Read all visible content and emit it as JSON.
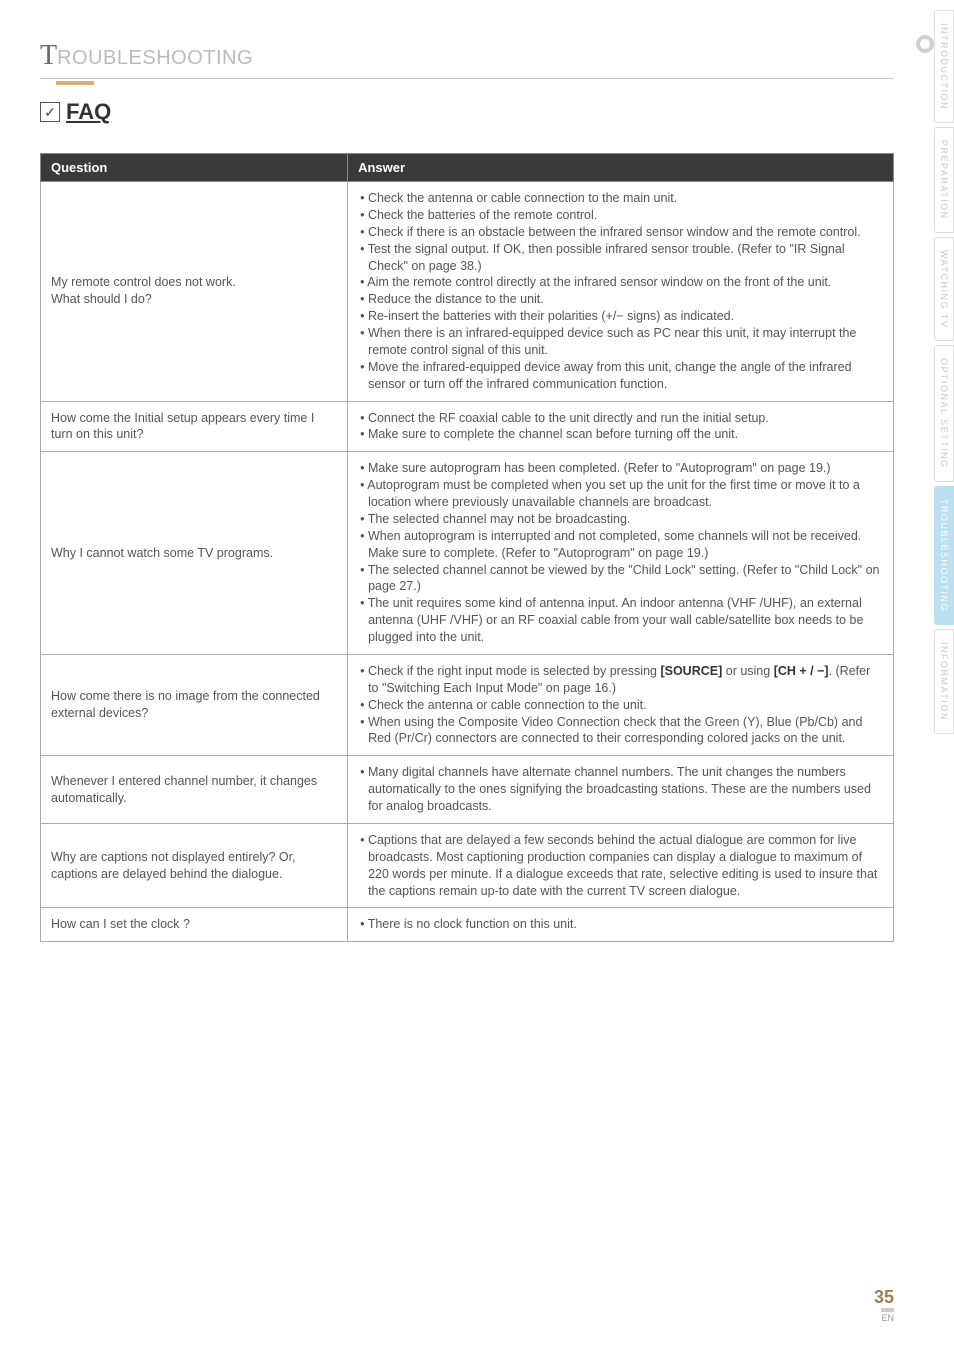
{
  "header": {
    "title_letter": "T",
    "title_rest": "ROUBLESHOOTING",
    "faq_label": "FAQ",
    "check_glyph": "✓"
  },
  "table": {
    "headers": {
      "q": "Question",
      "a": "Answer"
    },
    "rows": [
      {
        "question": "My remote control does not work.\nWhat should I do?",
        "answers": [
          "Check the antenna or cable connection to the main unit.",
          "Check the batteries of the remote control.",
          "Check if there is an obstacle between the infrared sensor window and the remote control.",
          "Test the signal output. If OK, then possible infrared sensor trouble. (Refer to \"IR Signal Check\" on page 38.)",
          "Aim the remote control directly at the infrared sensor window on the front of the unit.",
          "Reduce the distance to the unit.",
          "Re-insert the batteries with their polarities (+/− signs) as indicated.",
          "When there is an infrared-equipped device such as PC near this unit, it may interrupt the remote control signal of this unit.",
          "Move the infrared-equipped device away from this unit, change the angle of the infrared sensor or turn off the infrared communication function."
        ]
      },
      {
        "question": "How come the Initial setup appears every time I turn on this unit?",
        "answers": [
          "Connect the RF coaxial cable to the unit directly and run the initial setup.",
          "Make sure to complete the channel scan before turning off the unit."
        ]
      },
      {
        "question": "Why I cannot watch some TV programs.",
        "answers": [
          "Make sure autoprogram has been completed. (Refer to \"Autoprogram\" on page 19.)",
          "Autoprogram must be completed when you set up the unit for the first time or move it to a location where previously unavailable channels are broadcast.",
          "The selected channel may not be broadcasting.",
          "When autoprogram is interrupted and not completed, some channels will not be received. Make sure to complete. (Refer to \"Autoprogram\" on page 19.)",
          "The selected channel cannot be viewed by the \"Child Lock\" setting. (Refer to \"Child Lock\" on page 27.)",
          "The unit requires some kind of antenna input. An indoor antenna (VHF /UHF), an external antenna (UHF /VHF) or an RF coaxial cable from your wall cable/satellite box needs to be plugged  into the unit."
        ]
      },
      {
        "question": "How come there is no image from the connected external devices?",
        "answers_html": "<li>Check if the right input mode is selected by pressing <span class=\"bold\">[SOURCE]</span> or using <span class=\"bold\">[CH + / −]</span>. (Refer to \"Switching Each Input Mode\" on page 16.)</li><li>Check the antenna or cable connection to the unit.</li><li>When using the Composite Video Connection check that the Green (Y), Blue (Pb/Cb) and Red (Pr/Cr) connectors are connected to their corresponding colored jacks on the unit.</li>"
      },
      {
        "question": "Whenever I entered channel number, it changes automatically.",
        "answers": [
          "Many digital channels have alternate channel numbers. The unit changes the numbers automatically to the ones signifying the broadcasting stations. These are the numbers used for analog broadcasts."
        ]
      },
      {
        "question": "Why are captions not displayed entirely? Or, captions are delayed behind the dialogue.",
        "answers": [
          "Captions that are delayed a few seconds behind the actual dialogue are common for live broadcasts. Most captioning production companies can display a dialogue to maximum of 220 words per minute. If a dialogue exceeds that rate, selective editing is used to insure that the captions remain up-to date with the current TV screen dialogue."
        ]
      },
      {
        "question": "How can I set the clock ?",
        "answers": [
          "There is no clock function on this unit."
        ]
      }
    ]
  },
  "side_tabs": [
    {
      "label": "INTRODUCTION",
      "active": false
    },
    {
      "label": "PREPARATION",
      "active": false
    },
    {
      "label": "WATCHING  TV",
      "active": false
    },
    {
      "label": "OPTIONAL  SETTING",
      "active": false
    },
    {
      "label": "TROUBLESHOOTING",
      "active": true
    },
    {
      "label": "INFORMATION",
      "active": false
    }
  ],
  "footer": {
    "page_number": "35",
    "lang": "EN"
  }
}
